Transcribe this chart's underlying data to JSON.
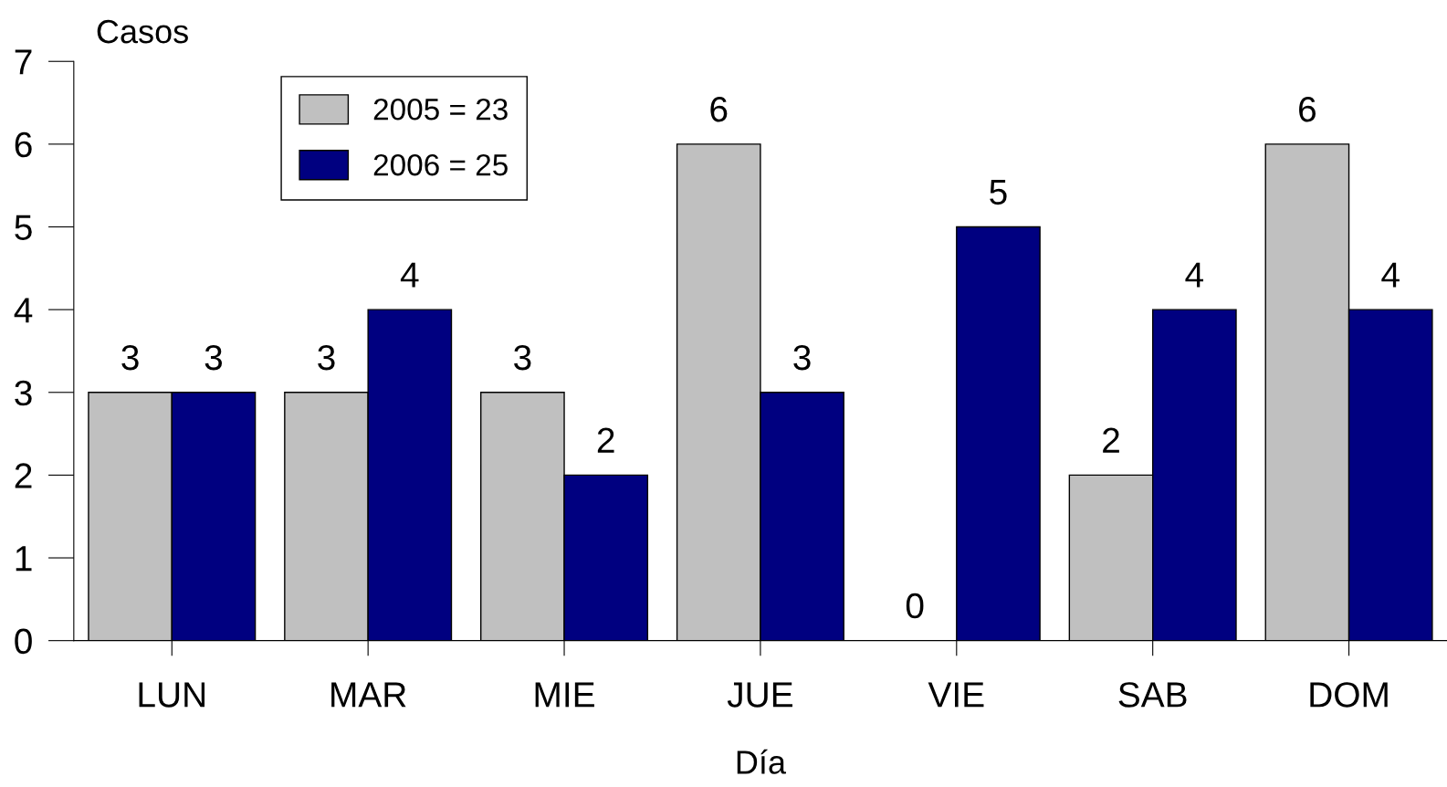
{
  "chart_data": {
    "type": "bar",
    "xlabel": "Día",
    "ylabel": "Casos",
    "categories": [
      "LUN",
      "MAR",
      "MIE",
      "JUE",
      "VIE",
      "SAB",
      "DOM"
    ],
    "series": [
      {
        "name": "2005 = 23",
        "color": "#c0c0c0",
        "values": [
          3,
          3,
          3,
          6,
          0,
          2,
          6
        ]
      },
      {
        "name": "2006 = 25",
        "color": "#000080",
        "values": [
          3,
          4,
          2,
          3,
          5,
          4,
          4
        ]
      }
    ],
    "ylim": [
      0,
      7
    ],
    "yticks": [
      0,
      1,
      2,
      3,
      4,
      5,
      6,
      7
    ],
    "grid": false,
    "legend": "top left",
    "data_labels": true
  }
}
